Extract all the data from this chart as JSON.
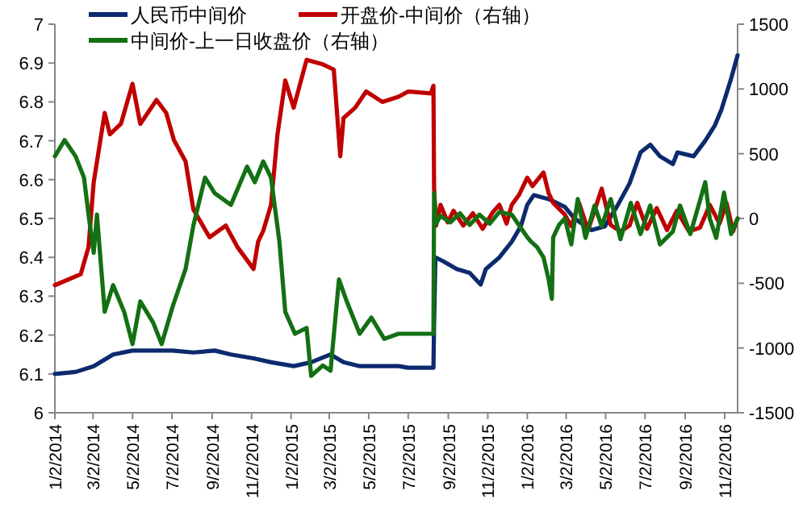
{
  "chart_data": {
    "type": "line",
    "legend": "top",
    "xlim": [
      "2014-01-02",
      "2016-11-22"
    ],
    "xticks": [
      {
        "value": "2014-01-02",
        "label": "1/2/2014"
      },
      {
        "value": "2014-03-02",
        "label": "3/2/2014"
      },
      {
        "value": "2014-05-02",
        "label": "5/2/2014"
      },
      {
        "value": "2014-07-02",
        "label": "7/2/2014"
      },
      {
        "value": "2014-09-02",
        "label": "9/2/2014"
      },
      {
        "value": "2014-11-02",
        "label": "11/2/2014"
      },
      {
        "value": "2015-01-02",
        "label": "1/2/2015"
      },
      {
        "value": "2015-03-02",
        "label": "3/2/2015"
      },
      {
        "value": "2015-05-02",
        "label": "5/2/2015"
      },
      {
        "value": "2015-07-02",
        "label": "7/2/2015"
      },
      {
        "value": "2015-09-02",
        "label": "9/2/2015"
      },
      {
        "value": "2015-11-02",
        "label": "11/2/2015"
      },
      {
        "value": "2016-01-02",
        "label": "1/2/2016"
      },
      {
        "value": "2016-03-02",
        "label": "3/2/2016"
      },
      {
        "value": "2016-05-02",
        "label": "5/2/2016"
      },
      {
        "value": "2016-07-02",
        "label": "7/2/2016"
      },
      {
        "value": "2016-09-02",
        "label": "9/2/2016"
      },
      {
        "value": "2016-11-02",
        "label": "11/2/2016"
      }
    ],
    "ylim": [
      6,
      7
    ],
    "yticks": [
      6,
      6.1,
      6.2,
      6.3,
      6.4,
      6.5,
      6.6,
      6.7,
      6.8,
      6.9,
      7
    ],
    "y2lim": [
      -1500,
      1500
    ],
    "y2ticks": [
      -1500,
      -1000,
      -500,
      0,
      500,
      1000,
      1500
    ],
    "series": [
      {
        "name": "人民币中间价",
        "color": "#0c2a6e",
        "x": [
          "2014-01-02",
          "2014-02-03",
          "2014-03-03",
          "2014-04-02",
          "2014-05-02",
          "2014-06-03",
          "2014-07-03",
          "2014-08-04",
          "2014-09-06",
          "2014-10-01",
          "2014-11-05",
          "2014-12-02",
          "2015-01-06",
          "2015-02-02",
          "2015-03-04",
          "2015-03-24",
          "2015-04-18",
          "2015-05-06",
          "2015-06-17",
          "2015-07-02",
          "2015-08-10",
          "2015-08-11",
          "2015-08-13",
          "2015-08-25",
          "2015-09-15",
          "2015-10-05",
          "2015-10-22",
          "2015-10-30",
          "2015-11-20",
          "2015-12-09",
          "2015-12-23",
          "2016-01-02",
          "2016-01-12",
          "2016-02-04",
          "2016-02-29",
          "2016-03-15",
          "2016-04-10",
          "2016-05-01",
          "2016-05-21",
          "2016-06-08",
          "2016-06-25",
          "2016-07-10",
          "2016-07-25",
          "2016-08-14",
          "2016-08-21",
          "2016-09-15",
          "2016-10-03",
          "2016-10-18",
          "2016-10-28",
          "2016-11-12",
          "2016-11-22"
        ],
        "values": [
          6.1,
          6.105,
          6.12,
          6.15,
          6.16,
          6.16,
          6.16,
          6.155,
          6.16,
          6.15,
          6.14,
          6.13,
          6.12,
          6.13,
          6.15,
          6.13,
          6.12,
          6.12,
          6.12,
          6.116,
          6.116,
          6.23,
          6.4,
          6.39,
          6.37,
          6.36,
          6.33,
          6.37,
          6.4,
          6.44,
          6.48,
          6.535,
          6.56,
          6.55,
          6.53,
          6.5,
          6.47,
          6.48,
          6.535,
          6.59,
          6.67,
          6.69,
          6.66,
          6.64,
          6.67,
          6.66,
          6.7,
          6.74,
          6.78,
          6.86,
          6.92
        ],
        "axis": "y"
      },
      {
        "name": "开盘价-中间价（右轴）",
        "color": "#c00000",
        "axis": "y2",
        "x": [
          "2014-01-02",
          "2014-02-11",
          "2014-02-23",
          "2014-03-03",
          "2014-03-20",
          "2014-03-28",
          "2014-04-14",
          "2014-05-02",
          "2014-05-14",
          "2014-06-08",
          "2014-06-23",
          "2014-07-05",
          "2014-07-23",
          "2014-08-04",
          "2014-08-29",
          "2014-09-23",
          "2014-10-11",
          "2014-11-05",
          "2014-11-12",
          "2014-11-20",
          "2014-12-02",
          "2014-12-12",
          "2014-12-24",
          "2015-01-06",
          "2015-01-26",
          "2015-02-20",
          "2015-03-09",
          "2015-03-19",
          "2015-03-24",
          "2015-04-11",
          "2015-04-28",
          "2015-05-23",
          "2015-06-17",
          "2015-07-02",
          "2015-08-06",
          "2015-08-10",
          "2015-08-11",
          "2015-08-14",
          "2015-08-21",
          "2015-09-01",
          "2015-09-10",
          "2015-09-25",
          "2015-10-10",
          "2015-10-25",
          "2015-11-10",
          "2015-11-20",
          "2015-12-01",
          "2015-12-09",
          "2015-12-20",
          "2016-01-02",
          "2016-01-10",
          "2016-01-27",
          "2016-02-04",
          "2016-02-11",
          "2016-02-29",
          "2016-03-10",
          "2016-03-22",
          "2016-04-05",
          "2016-04-26",
          "2016-05-10",
          "2016-05-25",
          "2016-06-08",
          "2016-06-20",
          "2016-07-05",
          "2016-07-20",
          "2016-08-05",
          "2016-08-20",
          "2016-09-08",
          "2016-09-25",
          "2016-10-10",
          "2016-10-25",
          "2016-11-05",
          "2016-11-15",
          "2016-11-22"
        ],
        "values": [
          -515,
          -430,
          -220,
          280,
          815,
          650,
          730,
          1040,
          730,
          915,
          815,
          605,
          440,
          70,
          -145,
          -55,
          -220,
          -390,
          -180,
          -95,
          105,
          650,
          1065,
          855,
          1225,
          1190,
          1150,
          480,
          775,
          855,
          980,
          900,
          940,
          980,
          965,
          1025,
          230,
          -55,
          105,
          -30,
          60,
          -55,
          40,
          -80,
          50,
          105,
          -40,
          105,
          180,
          315,
          250,
          355,
          195,
          120,
          30,
          -60,
          120,
          -90,
          230,
          -50,
          -100,
          -55,
          120,
          -80,
          80,
          -90,
          60,
          -100,
          -70,
          105,
          -40,
          120,
          -100,
          0
        ]
      },
      {
        "name": "中间价-上一日收盘价（右轴）",
        "color": "#137013",
        "axis": "y2",
        "x": [
          "2014-01-02",
          "2014-01-17",
          "2014-02-03",
          "2014-02-16",
          "2014-02-23",
          "2014-03-03",
          "2014-03-08",
          "2014-03-20",
          "2014-04-02",
          "2014-04-19",
          "2014-05-02",
          "2014-05-14",
          "2014-06-03",
          "2014-06-16",
          "2014-07-03",
          "2014-07-23",
          "2014-08-04",
          "2014-08-22",
          "2014-09-06",
          "2014-10-01",
          "2014-10-26",
          "2014-11-07",
          "2014-11-20",
          "2014-12-02",
          "2014-12-15",
          "2014-12-24",
          "2015-01-08",
          "2015-01-26",
          "2015-02-02",
          "2015-02-20",
          "2015-03-04",
          "2015-03-17",
          "2015-03-29",
          "2015-04-18",
          "2015-05-06",
          "2015-05-26",
          "2015-06-17",
          "2015-07-02",
          "2015-08-10",
          "2015-08-11",
          "2015-08-14",
          "2015-08-21",
          "2015-09-05",
          "2015-09-20",
          "2015-10-05",
          "2015-10-20",
          "2015-11-05",
          "2015-11-20",
          "2015-12-09",
          "2016-01-02",
          "2016-01-08",
          "2016-01-17",
          "2016-01-27",
          "2016-02-04",
          "2016-02-09",
          "2016-02-11",
          "2016-02-20",
          "2016-02-29",
          "2016-03-10",
          "2016-03-20",
          "2016-04-01",
          "2016-04-15",
          "2016-04-26",
          "2016-05-10",
          "2016-05-25",
          "2016-06-10",
          "2016-06-25",
          "2016-07-10",
          "2016-07-25",
          "2016-08-14",
          "2016-08-25",
          "2016-09-10",
          "2016-10-03",
          "2016-10-10",
          "2016-10-20",
          "2016-11-01",
          "2016-11-12",
          "2016-11-22"
        ],
        "values": [
          480,
          605,
          480,
          315,
          30,
          -265,
          30,
          -720,
          -515,
          -720,
          -970,
          -640,
          -805,
          -970,
          -680,
          -390,
          -55,
          315,
          195,
          105,
          400,
          280,
          440,
          315,
          -180,
          -720,
          -890,
          -845,
          -1215,
          -1135,
          -1175,
          -470,
          -640,
          -890,
          -765,
          -930,
          -890,
          -890,
          -890,
          195,
          -40,
          20,
          -30,
          40,
          -50,
          30,
          -40,
          50,
          30,
          -145,
          -180,
          -220,
          -300,
          -470,
          -620,
          -145,
          -50,
          0,
          -200,
          150,
          -150,
          100,
          -60,
          150,
          -160,
          120,
          -120,
          100,
          -200,
          -100,
          100,
          -120,
          280,
          0,
          -150,
          200,
          -120,
          0
        ]
      }
    ]
  }
}
